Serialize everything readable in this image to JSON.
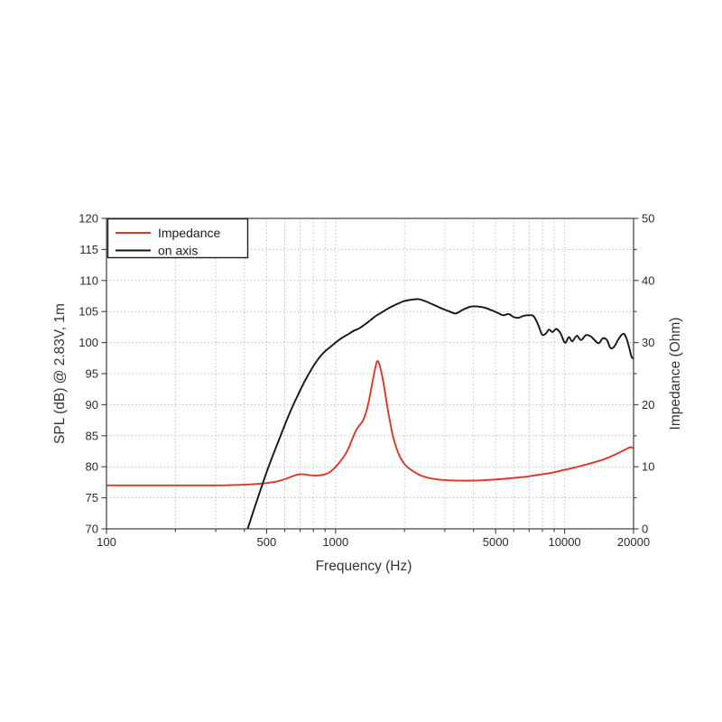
{
  "page": {
    "background": "#ffffff"
  },
  "chart_data": {
    "type": "line",
    "title": "",
    "xlabel": "Frequency (Hz)",
    "ylabel_left": "SPL (dB) @ 2.83V, 1m",
    "ylabel_right": "Impedance (Ohm)",
    "x_scale": "log",
    "x_range": [
      100,
      20000
    ],
    "y_left_range": [
      70,
      120
    ],
    "y_right_range": [
      0,
      50
    ],
    "grid": true,
    "grid_color": "#b5b5b5",
    "spine_color": "#3c3c3c",
    "text_color": "#2b2b2b",
    "x_major_ticks": [
      100,
      500,
      1000,
      5000,
      10000,
      20000
    ],
    "x_major_tick_labels": [
      "100",
      "500",
      "1000",
      "5000",
      "10000",
      "20000"
    ],
    "x_minor_ticks": [
      200,
      300,
      400,
      600,
      700,
      800,
      900,
      2000,
      3000,
      4000,
      6000,
      7000,
      8000,
      9000
    ],
    "y_left_ticks": [
      70,
      75,
      80,
      85,
      90,
      95,
      100,
      105,
      110,
      115,
      120
    ],
    "y_right_major_ticks": [
      0,
      10,
      20,
      30,
      40,
      50
    ],
    "y_right_minor_ticks": [
      5,
      15,
      25,
      35,
      45
    ],
    "legend": {
      "position": "top-left"
    },
    "series": [
      {
        "name": "Impedance",
        "axis": "right",
        "unit": "Ohm",
        "color": "#df352a",
        "points": [
          [
            100,
            7.0
          ],
          [
            140,
            7.0
          ],
          [
            180,
            7.0
          ],
          [
            230,
            7.0
          ],
          [
            290,
            7.0
          ],
          [
            350,
            7.05
          ],
          [
            420,
            7.15
          ],
          [
            480,
            7.3
          ],
          [
            540,
            7.55
          ],
          [
            590,
            7.9
          ],
          [
            630,
            8.3
          ],
          [
            670,
            8.65
          ],
          [
            700,
            8.8
          ],
          [
            740,
            8.75
          ],
          [
            790,
            8.6
          ],
          [
            840,
            8.6
          ],
          [
            890,
            8.75
          ],
          [
            940,
            9.1
          ],
          [
            990,
            9.8
          ],
          [
            1040,
            10.7
          ],
          [
            1090,
            11.7
          ],
          [
            1140,
            13.0
          ],
          [
            1190,
            14.7
          ],
          [
            1240,
            16.1
          ],
          [
            1280,
            16.8
          ],
          [
            1320,
            17.5
          ],
          [
            1370,
            19.2
          ],
          [
            1410,
            21.3
          ],
          [
            1450,
            23.7
          ],
          [
            1490,
            25.9
          ],
          [
            1520,
            27.0
          ],
          [
            1550,
            26.6
          ],
          [
            1590,
            25.0
          ],
          [
            1640,
            22.3
          ],
          [
            1690,
            19.3
          ],
          [
            1740,
            16.7
          ],
          [
            1790,
            14.6
          ],
          [
            1870,
            12.4
          ],
          [
            1950,
            11.0
          ],
          [
            2050,
            10.0
          ],
          [
            2200,
            9.2
          ],
          [
            2350,
            8.6
          ],
          [
            2550,
            8.2
          ],
          [
            2800,
            7.95
          ],
          [
            3100,
            7.82
          ],
          [
            3500,
            7.76
          ],
          [
            4000,
            7.78
          ],
          [
            4500,
            7.85
          ],
          [
            5200,
            8.0
          ],
          [
            6000,
            8.2
          ],
          [
            6800,
            8.4
          ],
          [
            7700,
            8.7
          ],
          [
            8700,
            9.0
          ],
          [
            9700,
            9.4
          ],
          [
            10700,
            9.75
          ],
          [
            11700,
            10.1
          ],
          [
            12700,
            10.45
          ],
          [
            13700,
            10.8
          ],
          [
            14700,
            11.15
          ],
          [
            15700,
            11.55
          ],
          [
            16700,
            12.0
          ],
          [
            17700,
            12.45
          ],
          [
            18700,
            12.9
          ],
          [
            19400,
            13.15
          ],
          [
            20000,
            13.0
          ]
        ]
      },
      {
        "name": "on axis",
        "axis": "left",
        "unit": "dB",
        "color": "#161616",
        "points": [
          [
            413,
            70
          ],
          [
            435,
            72.5
          ],
          [
            460,
            75.2
          ],
          [
            485,
            77.7
          ],
          [
            510,
            80.0
          ],
          [
            540,
            82.4
          ],
          [
            570,
            84.6
          ],
          [
            600,
            86.7
          ],
          [
            640,
            89.2
          ],
          [
            680,
            91.3
          ],
          [
            720,
            93.2
          ],
          [
            760,
            94.8
          ],
          [
            800,
            96.2
          ],
          [
            850,
            97.6
          ],
          [
            900,
            98.6
          ],
          [
            950,
            99.3
          ],
          [
            1000,
            100.0
          ],
          [
            1060,
            100.7
          ],
          [
            1130,
            101.3
          ],
          [
            1200,
            101.9
          ],
          [
            1270,
            102.3
          ],
          [
            1340,
            102.9
          ],
          [
            1420,
            103.6
          ],
          [
            1500,
            104.3
          ],
          [
            1580,
            104.8
          ],
          [
            1680,
            105.4
          ],
          [
            1780,
            105.9
          ],
          [
            1880,
            106.3
          ],
          [
            2000,
            106.7
          ],
          [
            2150,
            106.9
          ],
          [
            2300,
            107.0
          ],
          [
            2450,
            106.7
          ],
          [
            2600,
            106.3
          ],
          [
            2750,
            105.9
          ],
          [
            2950,
            105.4
          ],
          [
            3150,
            105.0
          ],
          [
            3350,
            104.7
          ],
          [
            3600,
            105.3
          ],
          [
            3900,
            105.8
          ],
          [
            4200,
            105.8
          ],
          [
            4500,
            105.6
          ],
          [
            4800,
            105.2
          ],
          [
            5100,
            104.8
          ],
          [
            5400,
            104.4
          ],
          [
            5700,
            104.6
          ],
          [
            6000,
            104.1
          ],
          [
            6300,
            104.0
          ],
          [
            6600,
            104.3
          ],
          [
            7000,
            104.4
          ],
          [
            7300,
            104.3
          ],
          [
            7600,
            103.2
          ],
          [
            7900,
            101.6
          ],
          [
            8050,
            101.2
          ],
          [
            8300,
            101.5
          ],
          [
            8550,
            102.1
          ],
          [
            8850,
            101.7
          ],
          [
            9200,
            102.2
          ],
          [
            9600,
            101.5
          ],
          [
            9900,
            100.3
          ],
          [
            10100,
            100.0
          ],
          [
            10450,
            100.9
          ],
          [
            10800,
            100.2
          ],
          [
            11300,
            101.1
          ],
          [
            11800,
            100.4
          ],
          [
            12400,
            101.2
          ],
          [
            13000,
            101.0
          ],
          [
            13600,
            100.3
          ],
          [
            14100,
            99.9
          ],
          [
            14700,
            100.7
          ],
          [
            15300,
            100.4
          ],
          [
            15900,
            99.1
          ],
          [
            16500,
            99.4
          ],
          [
            17100,
            100.4
          ],
          [
            17700,
            101.2
          ],
          [
            18200,
            101.4
          ],
          [
            18700,
            100.5
          ],
          [
            19200,
            99.0
          ],
          [
            19600,
            97.7
          ],
          [
            20000,
            97.4
          ]
        ]
      }
    ]
  }
}
